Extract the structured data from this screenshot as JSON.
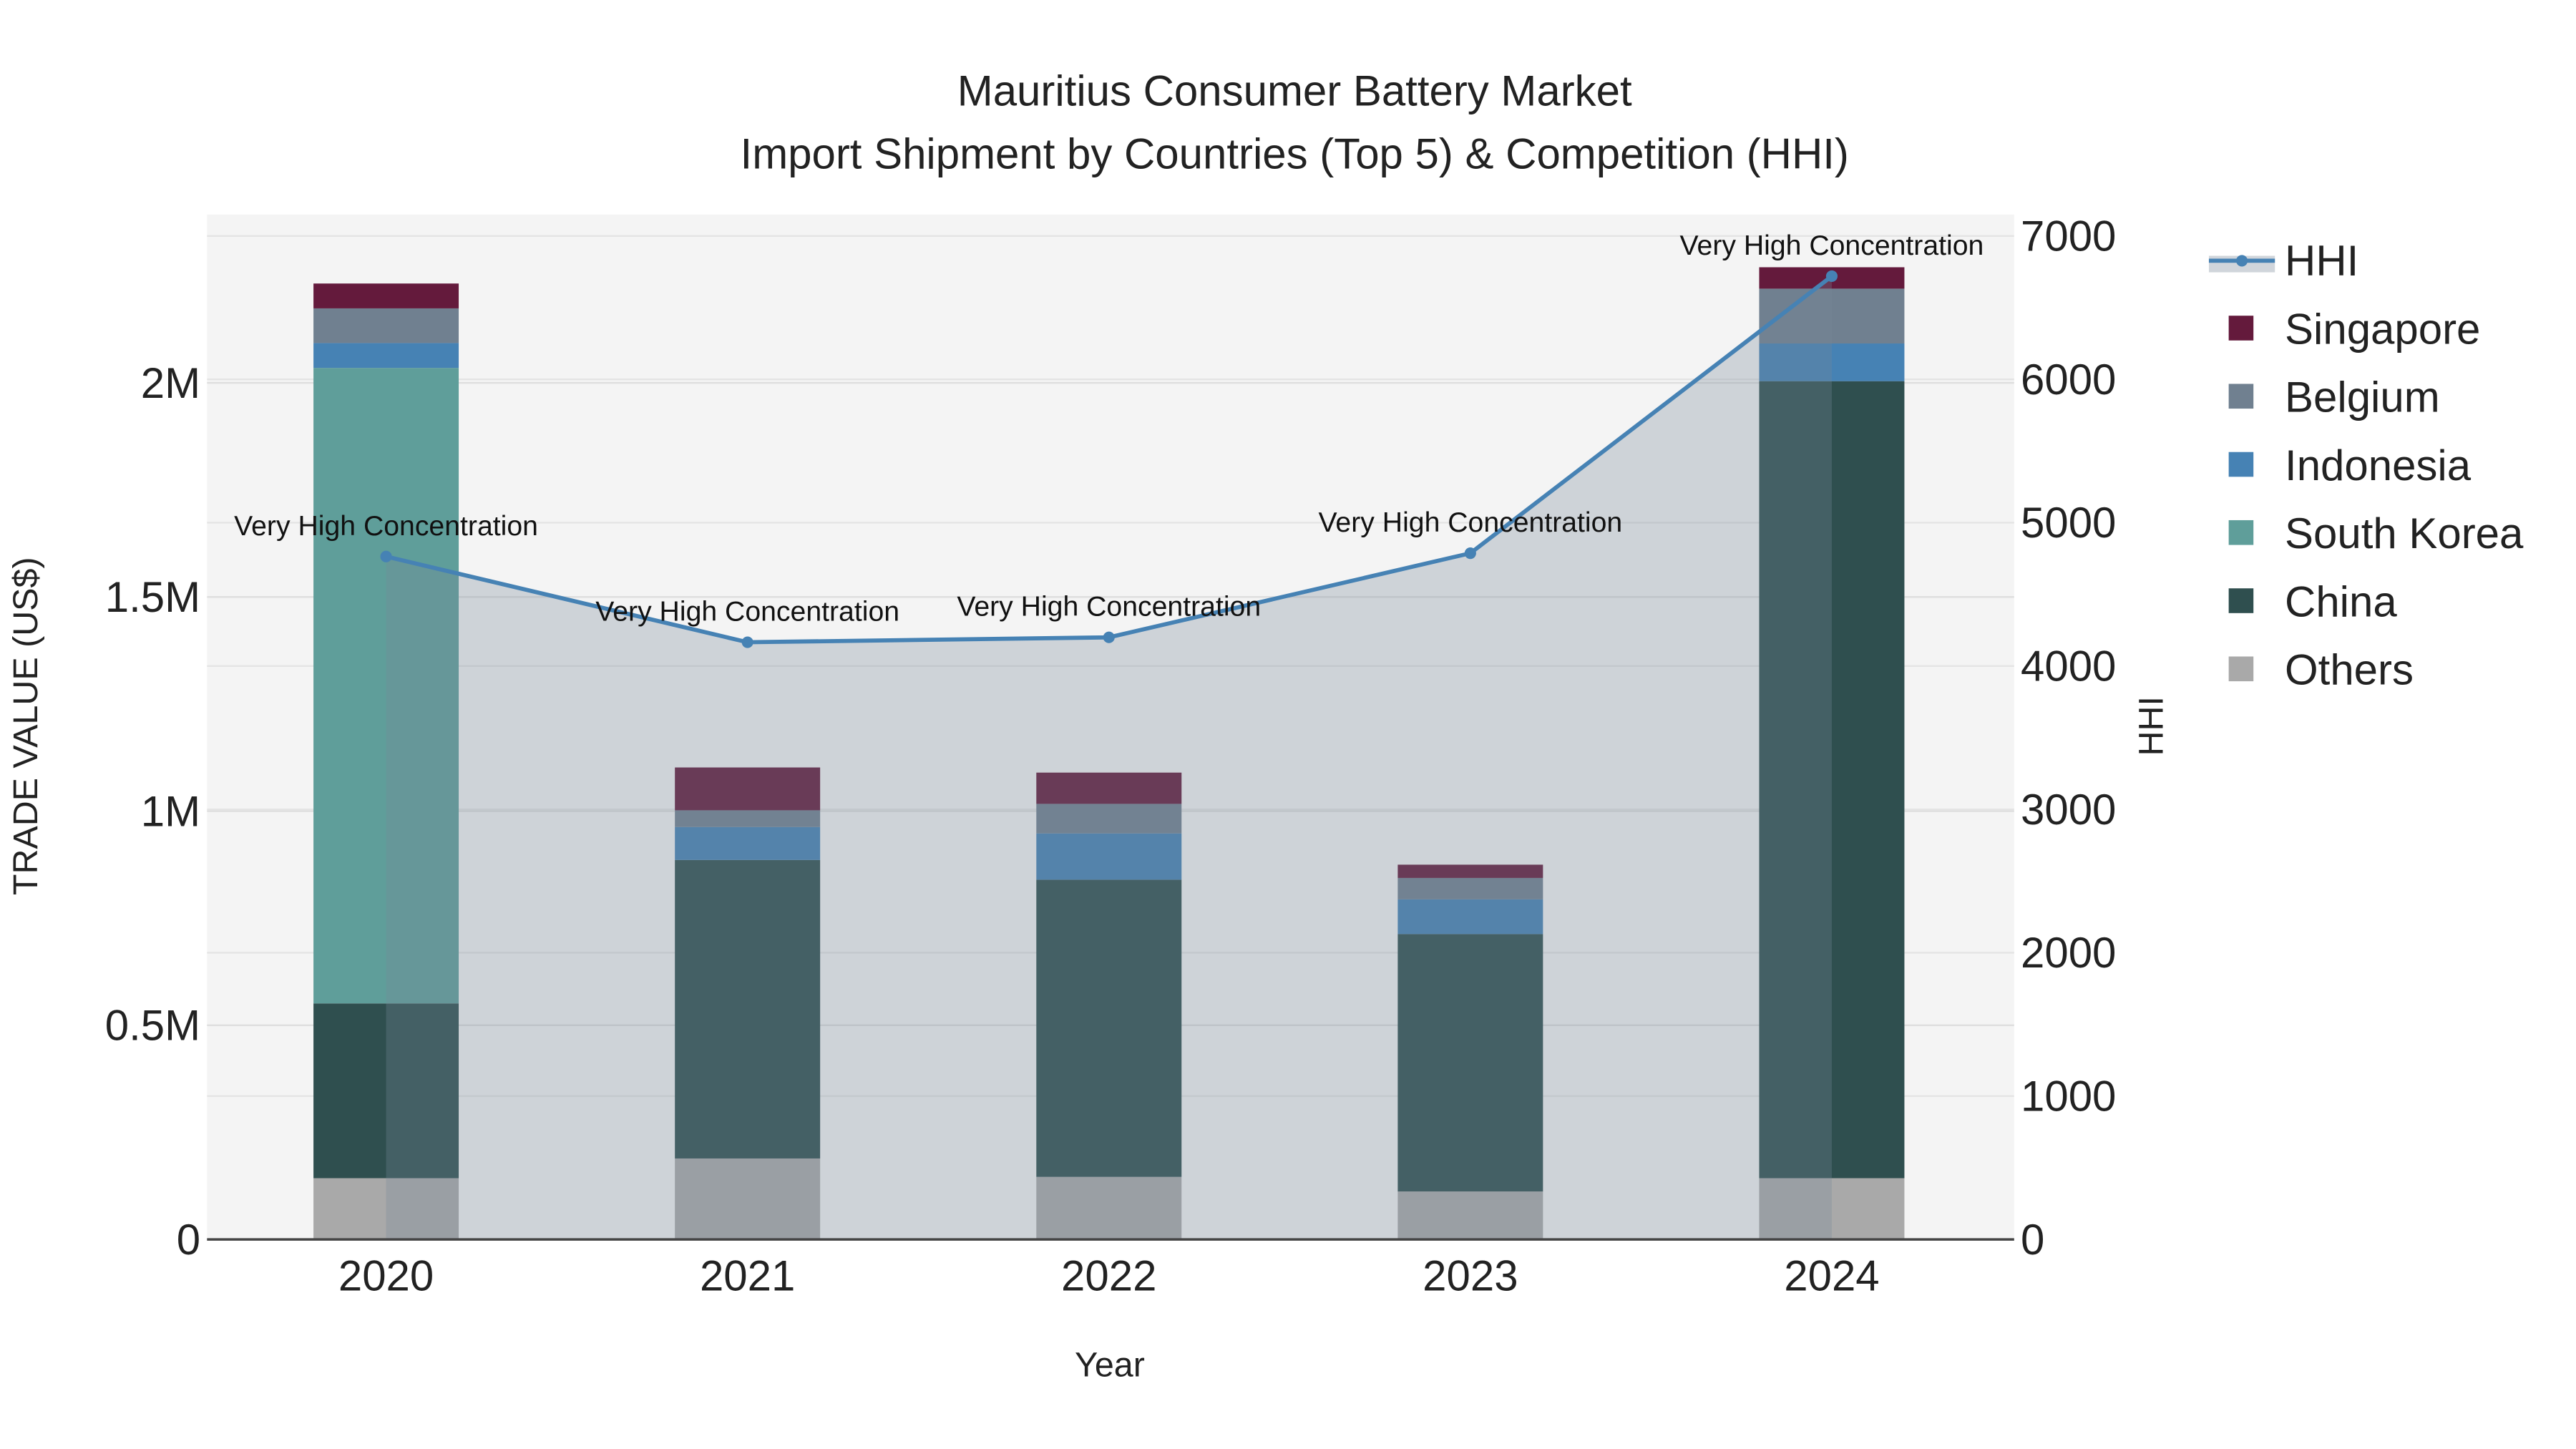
{
  "chart_data": {
    "type": "bar",
    "title": "Mauritius Consumer Battery Market",
    "subtitle": "Import Shipment by Countries (Top 5) & Competition (HHI)",
    "xlabel": "Year",
    "ylabel": "TRADE VALUE (US$)",
    "y2label": "HHI",
    "categories": [
      "2020",
      "2021",
      "2022",
      "2023",
      "2024"
    ],
    "ylim": [
      0,
      2380000
    ],
    "y2lim": [
      0,
      7140
    ],
    "yticks": [
      {
        "v": 0,
        "label": "0"
      },
      {
        "v": 500000,
        "label": "0.5M"
      },
      {
        "v": 1000000,
        "label": "1M"
      },
      {
        "v": 1500000,
        "label": "1.5M"
      },
      {
        "v": 2000000,
        "label": "2M"
      }
    ],
    "y2ticks": [
      {
        "v": 0,
        "label": "0"
      },
      {
        "v": 1000,
        "label": "1000"
      },
      {
        "v": 2000,
        "label": "2000"
      },
      {
        "v": 3000,
        "label": "3000"
      },
      {
        "v": 4000,
        "label": "4000"
      },
      {
        "v": 5000,
        "label": "5000"
      },
      {
        "v": 6000,
        "label": "6000"
      },
      {
        "v": 7000,
        "label": "7000"
      }
    ],
    "stacked": true,
    "series": [
      {
        "name": "Others",
        "color": "#a9a9a9",
        "values": [
          143000,
          189000,
          146000,
          112000,
          143000
        ]
      },
      {
        "name": "China",
        "color": "#2f4f4f",
        "values": [
          408000,
          697000,
          694000,
          601000,
          1861000
        ]
      },
      {
        "name": "South Korea",
        "color": "#5f9e9a",
        "values": [
          1484000,
          0,
          0,
          0,
          0
        ]
      },
      {
        "name": "Indonesia",
        "color": "#4682b4",
        "values": [
          58000,
          77000,
          108000,
          81000,
          88000
        ]
      },
      {
        "name": "Belgium",
        "color": "#708090",
        "values": [
          81000,
          39000,
          69000,
          50000,
          128000
        ]
      },
      {
        "name": "Singapore",
        "color": "#641a3c",
        "values": [
          58000,
          100000,
          73000,
          31000,
          50000
        ]
      }
    ],
    "line": {
      "name": "HHI",
      "color": "#4682b4",
      "axis": "y2",
      "values": [
        4764,
        4166,
        4200,
        4787,
        6720
      ],
      "annotations": [
        "Very High Concentration",
        "Very High Concentration",
        "Very High Concentration",
        "Very High Concentration",
        "Very High Concentration"
      ]
    },
    "legend": {
      "placement": "right",
      "order": [
        "HHI",
        "Singapore",
        "Belgium",
        "Indonesia",
        "South Korea",
        "China",
        "Others"
      ]
    },
    "grid": true
  }
}
